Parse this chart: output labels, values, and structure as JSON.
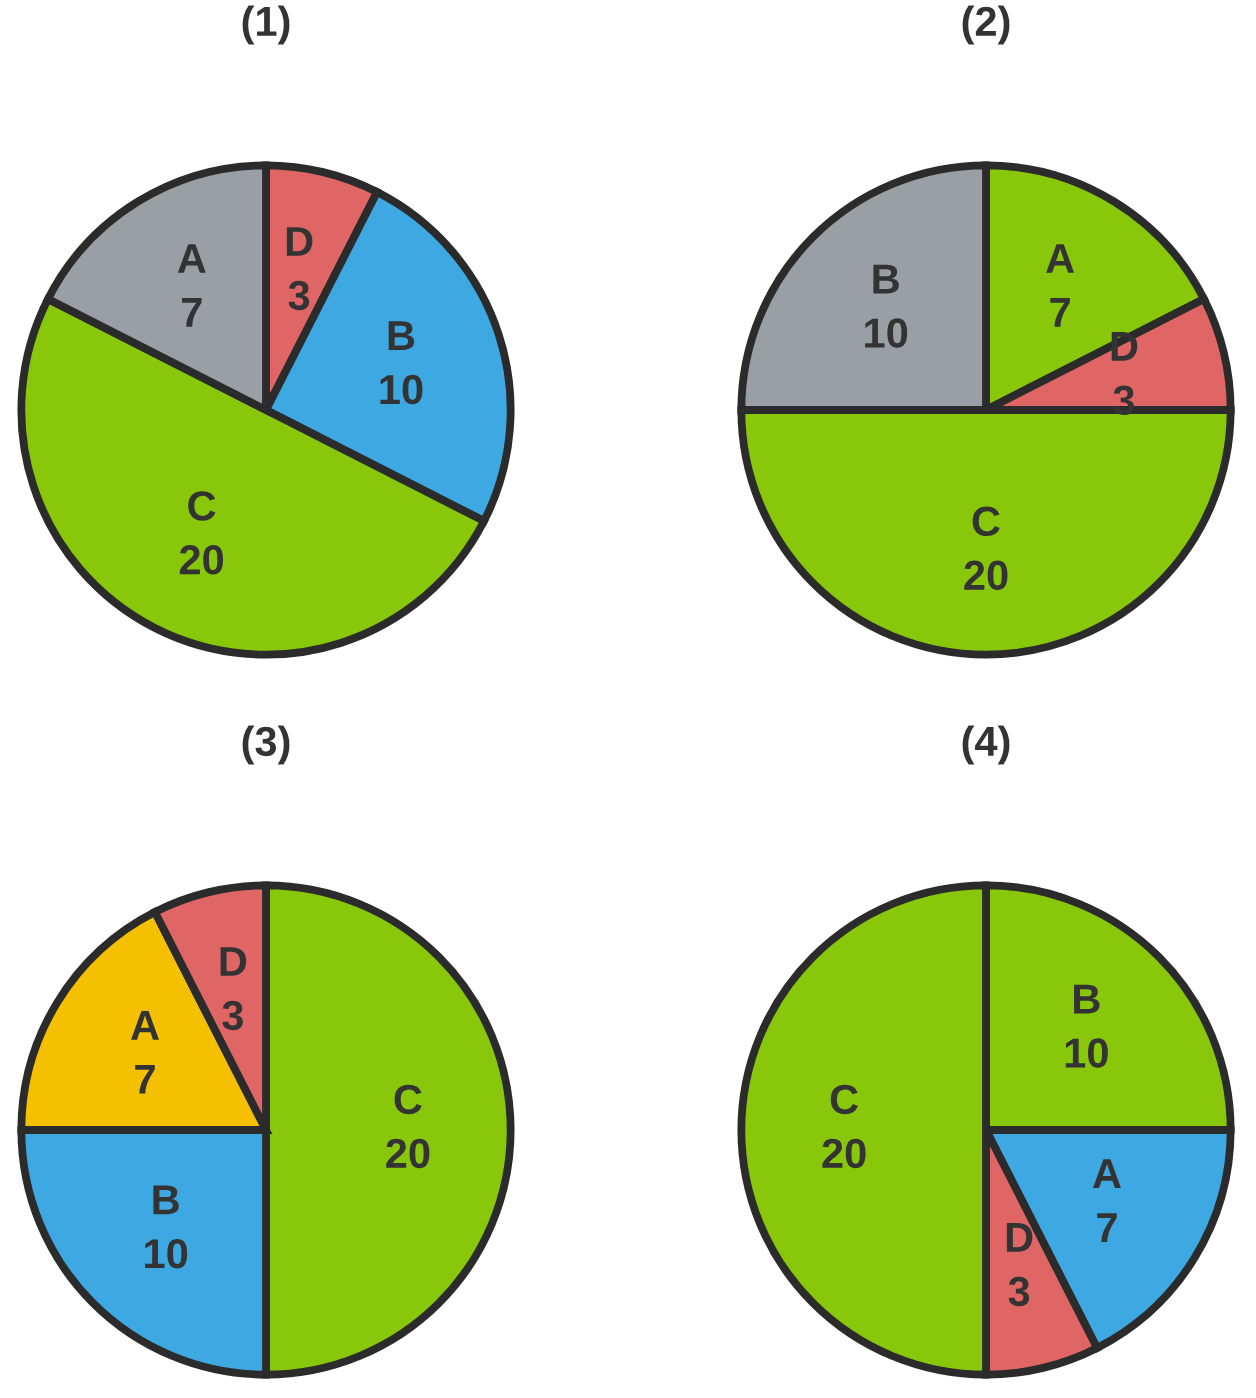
{
  "chart_data": [
    {
      "type": "pie",
      "title": "(1)",
      "categories": [
        "D",
        "B",
        "C",
        "A"
      ],
      "values": [
        3,
        10,
        20,
        7
      ],
      "colors": [
        "#e06666",
        "#3ea8e2",
        "#88c70a",
        "#9a9ea5"
      ],
      "data_labels": true
    },
    {
      "type": "pie",
      "title": "(2)",
      "categories": [
        "A",
        "D",
        "C",
        "B"
      ],
      "values": [
        7,
        3,
        20,
        10
      ],
      "colors": [
        "#88c70a",
        "#e06666",
        "#88c70a",
        "#9a9ea5"
      ],
      "data_labels": true
    },
    {
      "type": "pie",
      "title": "(3)",
      "categories": [
        "C",
        "B",
        "A",
        "D"
      ],
      "values": [
        20,
        10,
        7,
        3
      ],
      "colors": [
        "#88c70a",
        "#3ea8e2",
        "#f5c000",
        "#e06666"
      ],
      "data_labels": true
    },
    {
      "type": "pie",
      "title": "(4)",
      "categories": [
        "B",
        "A",
        "D",
        "C"
      ],
      "values": [
        10,
        7,
        3,
        20
      ],
      "colors": [
        "#88c70a",
        "#3ea8e2",
        "#e06666",
        "#88c70a"
      ],
      "data_labels": true
    }
  ]
}
